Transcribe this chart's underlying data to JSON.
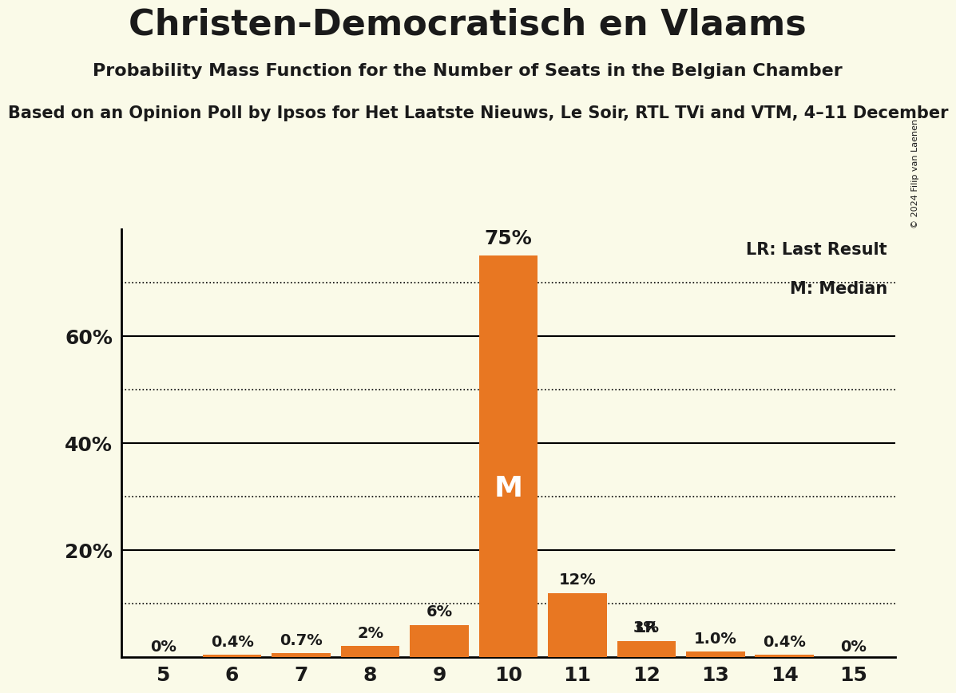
{
  "title": "Christen-Democratisch en Vlaams",
  "subtitle": "Probability Mass Function for the Number of Seats in the Belgian Chamber",
  "source_line": "Based on an Opinion Poll by Ipsos for Het Laatste Nieuws, Le Soir, RTL TVi and VTM, 4–11 December",
  "copyright": "© 2024 Filip van Laenen",
  "seats": [
    5,
    6,
    7,
    8,
    9,
    10,
    11,
    12,
    13,
    14,
    15
  ],
  "probabilities": [
    0.0,
    0.4,
    0.7,
    2.0,
    6.0,
    75.0,
    12.0,
    3.0,
    1.0,
    0.4,
    0.0
  ],
  "labels": [
    "0%",
    "0.4%",
    "0.7%",
    "2%",
    "6%",
    "75%",
    "12%",
    "3%",
    "1.0%",
    "0.4%",
    "0%"
  ],
  "bar_color": "#E87722",
  "median_seat": 10,
  "last_result_seat": 12,
  "median_label": "M",
  "last_result_label": "LR",
  "legend_lr": "LR: Last Result",
  "legend_m": "M: Median",
  "background_color": "#FAFAE8",
  "text_color": "#1a1a1a",
  "ylim": [
    0,
    80
  ],
  "dotted_grid_values": [
    10,
    30,
    50,
    70
  ],
  "solid_grid_values": [
    20,
    40,
    60
  ],
  "bar_width": 0.85
}
